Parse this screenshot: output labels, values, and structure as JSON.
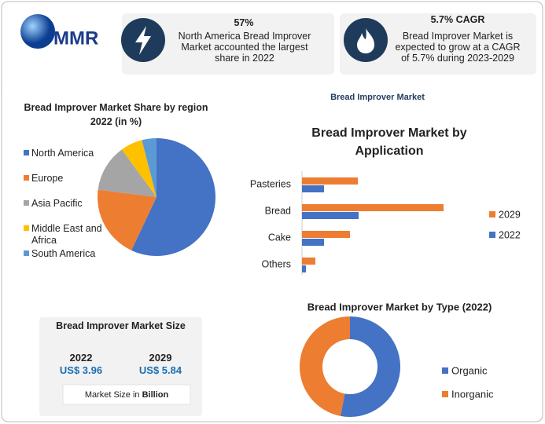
{
  "header": {
    "logo": "MMR",
    "stats": [
      {
        "value": "57%",
        "text": "North America Bread Improver Market accounted the largest share in 2022"
      },
      {
        "value": "5.7% CAGR",
        "text": "Bread Improver Market is expected to grow at a CAGR of 5.7% during 2023-2029"
      }
    ]
  },
  "label": "Bread Improver Market",
  "chart_data": [
    {
      "type": "pie",
      "title": "Bread Improver Market Share by region 2022 (in %)",
      "categories": [
        "North America",
        "Europe",
        "Asia Pacific",
        "Middle East and Africa",
        "South America"
      ],
      "values": [
        57,
        20,
        13,
        6,
        4
      ],
      "colors": [
        "#4472c4",
        "#ed7d31",
        "#a5a5a5",
        "#ffc000",
        "#5b9bd5"
      ],
      "legend": "left"
    },
    {
      "type": "bar",
      "orientation": "horizontal",
      "title": "Bread Improver Market by Application",
      "categories": [
        "Pasteries",
        "Bread",
        "Cake",
        "Others"
      ],
      "series": [
        {
          "name": "2029",
          "color": "#ed7d31",
          "values": [
            0.71,
            1.8,
            0.61,
            0.17
          ]
        },
        {
          "name": "2022",
          "color": "#4472c4",
          "values": [
            0.28,
            0.72,
            0.28,
            0.05
          ]
        }
      ],
      "legend": "right"
    },
    {
      "type": "donut",
      "title": "Bread Improver Market by Type (2022)",
      "categories": [
        "Organic",
        "Inorganic"
      ],
      "values": [
        53,
        47
      ],
      "colors": [
        "#4472c4",
        "#ed7d31"
      ],
      "legend": "right"
    }
  ],
  "market_size": {
    "title": "Bread Improver Market Size",
    "years": [
      {
        "year": "2022",
        "value": "US$ 3.96"
      },
      {
        "year": "2029",
        "value": "US$ 5.84"
      }
    ],
    "note": "Market Size in",
    "unit": "Billion"
  }
}
